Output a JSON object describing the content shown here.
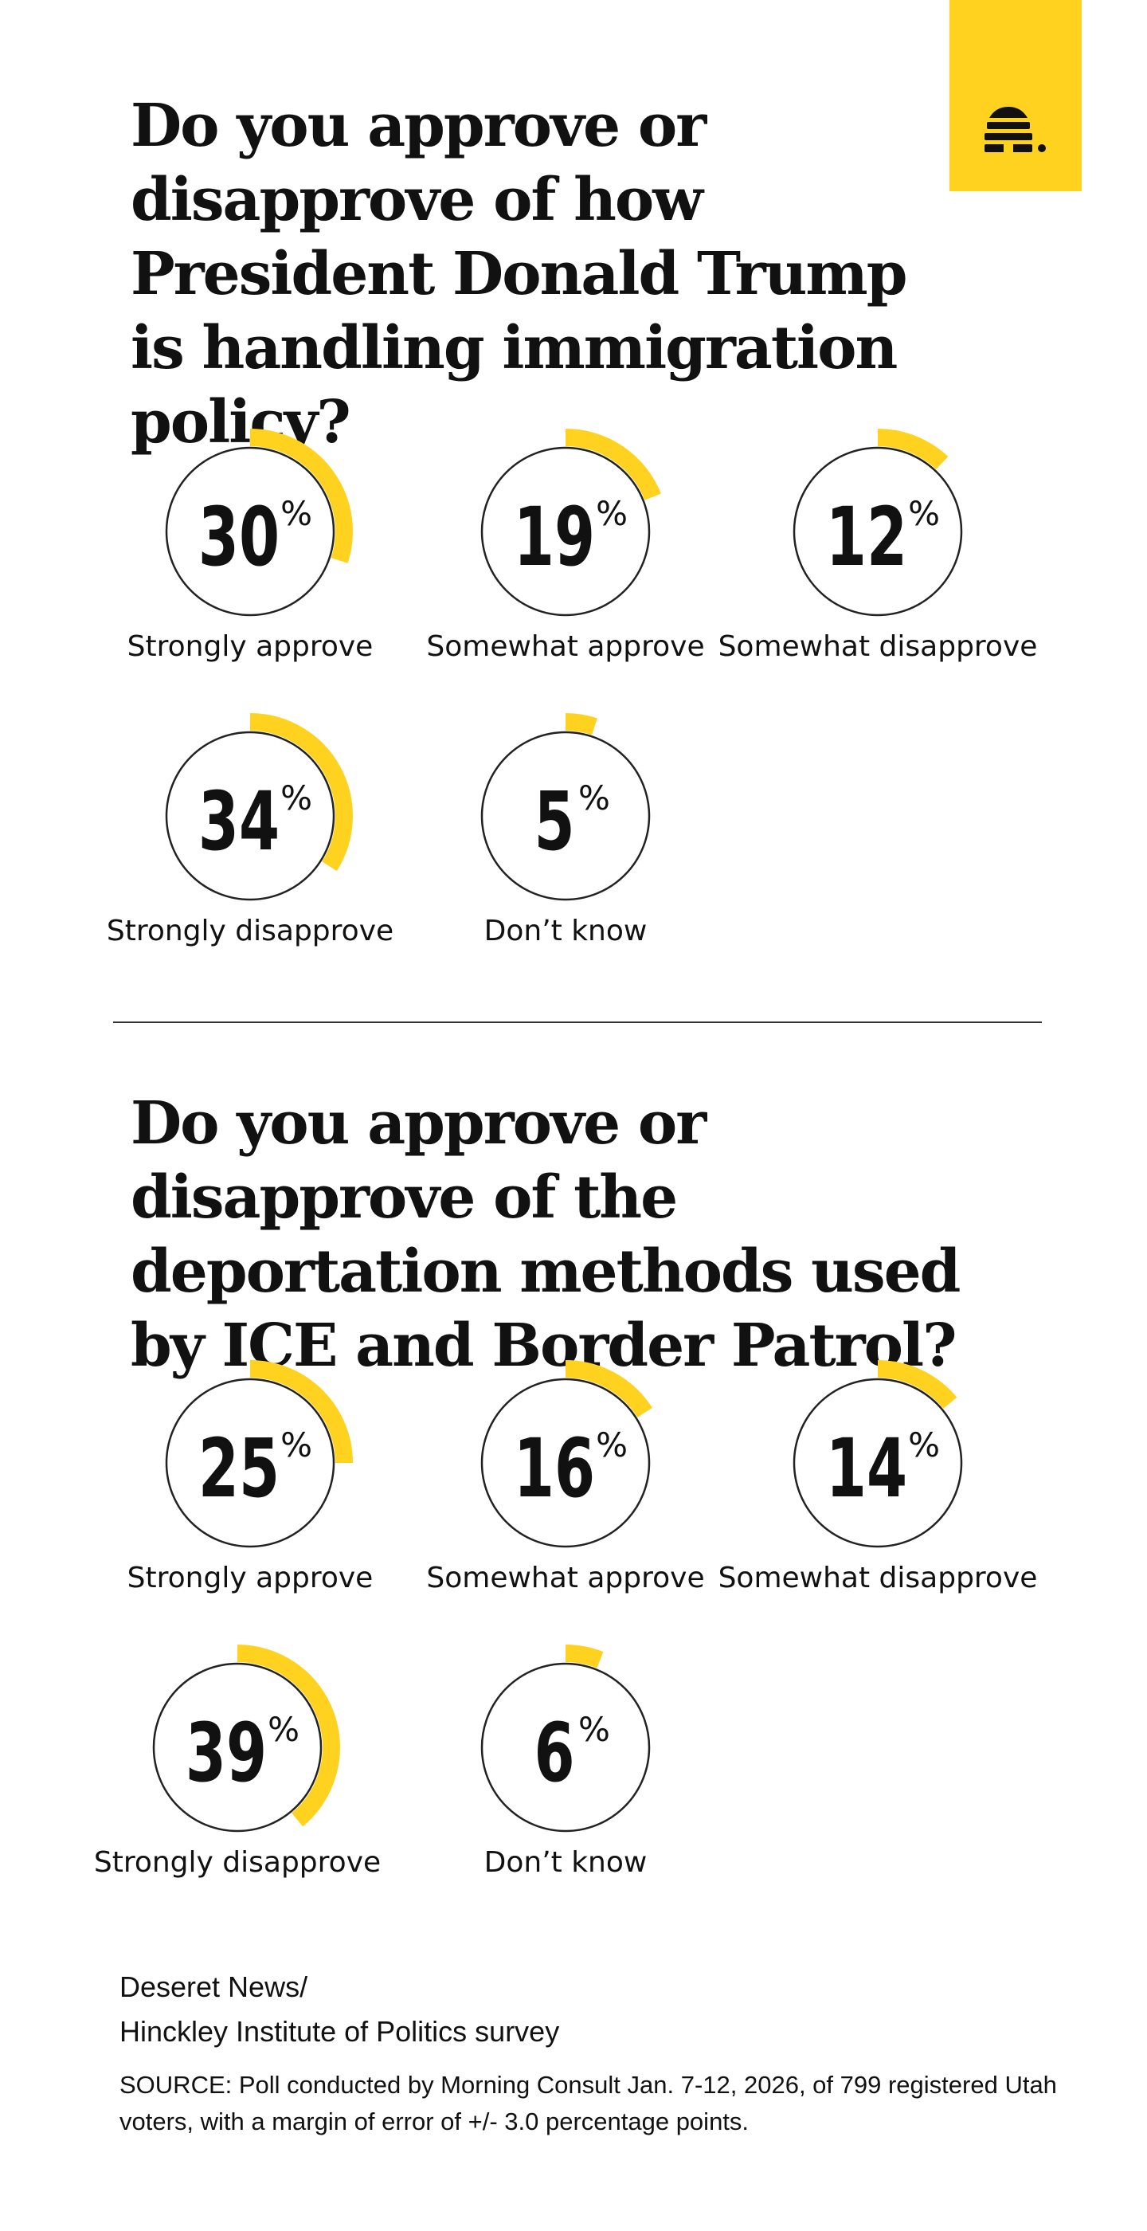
{
  "brand": {
    "logo_icon": "beehive-logo-icon",
    "accent_color": "#FFD21F"
  },
  "chart_data": [
    {
      "type": "radial-gauge",
      "title": "Do you approve or disapprove of how President Donald Trump is handling immigration policy?",
      "unit": "%",
      "categories": [
        "Strongly approve",
        "Somewhat approve",
        "Somewhat disapprove",
        "Strongly disapprove",
        "Don’t know"
      ],
      "values": [
        30,
        19,
        12,
        34,
        5
      ]
    },
    {
      "type": "radial-gauge",
      "title": "Do you approve or disapprove of the deportation methods used by ICE and Border Patrol?",
      "unit": "%",
      "categories": [
        "Strongly approve",
        "Somewhat approve",
        "Somewhat disapprove",
        "Strongly disapprove",
        "Don’t know"
      ],
      "values": [
        25,
        16,
        14,
        39,
        6
      ]
    }
  ],
  "footer": {
    "credit_line1": "Deseret News/",
    "credit_line2": "Hinckley Institute of Politics survey",
    "source": "SOURCE: Poll conducted by Morning Consult Jan. 7-12, 2026, of 799 registered Utah voters, with a margin of error of +/- 3.0 percentage points."
  },
  "colors": {
    "accent": "#FFD21F",
    "text": "#111111",
    "ring": "#222222"
  }
}
